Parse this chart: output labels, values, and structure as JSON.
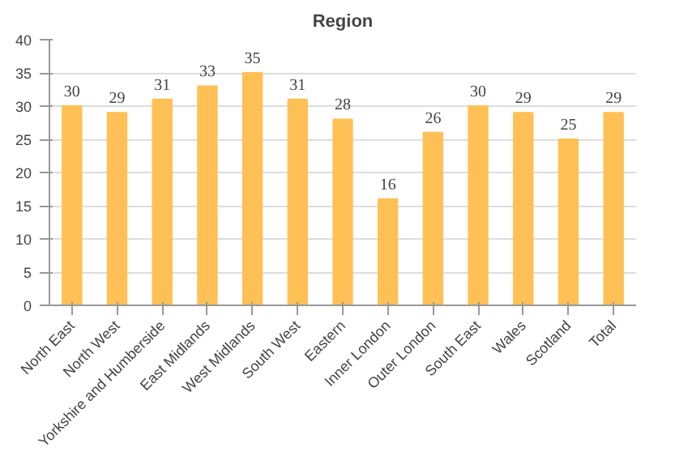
{
  "chart_data": {
    "type": "bar",
    "title": "Region",
    "categories": [
      "North East",
      "North West",
      "Yorkshire and Humberside",
      "East Midlands",
      "West Midlands",
      "South West",
      "Eastern",
      "Inner London",
      "Outer London",
      "South East",
      "Wales",
      "Scotland",
      "Total"
    ],
    "values": [
      30,
      29,
      31,
      33,
      35,
      31,
      28,
      16,
      26,
      30,
      29,
      25,
      29
    ],
    "color": "#ffc055",
    "ylim": [
      0,
      40
    ],
    "yticks": [
      0,
      5,
      10,
      15,
      20,
      25,
      30,
      35,
      40
    ],
    "grid": "y",
    "data_labels": true
  }
}
